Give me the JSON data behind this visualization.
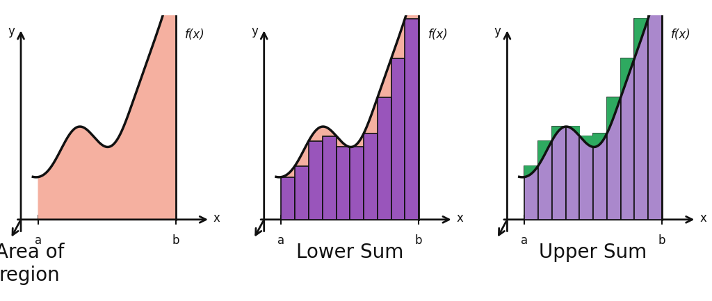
{
  "bg_color": "#ffffff",
  "curve_color": "#111111",
  "fill_color_area": "#f5b0a0",
  "fill_color_bars_lower": "#9955bb",
  "fill_color_bars_upper": "#aa88cc",
  "overshoot_color_lower": "#f5b0a0",
  "overshoot_color_upper": "#2eaa60",
  "bar_edge_color": "#111111",
  "axis_color": "#111111",
  "label_color": "#111111",
  "titles": [
    "Area of\nregion",
    "Lower Sum",
    "Upper Sum"
  ],
  "title_fontsize": 20,
  "n_bars": 10,
  "x_start": 1.0,
  "x_end": 9.0,
  "xlim": [
    -0.8,
    11.5
  ],
  "ylim": [
    -1.0,
    7.5
  ]
}
